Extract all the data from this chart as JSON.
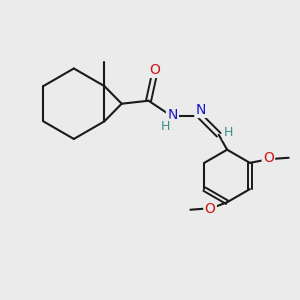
{
  "bg_color": "#ebebeb",
  "bond_color": "#1a1a1a",
  "bond_lw": 1.5,
  "atom_colors": {
    "N": "#1414cc",
    "O": "#cc1414",
    "H": "#3d8c8c"
  },
  "font_size": 10,
  "font_size_h": 9,
  "xlim": [
    0,
    10
  ],
  "ylim": [
    0,
    10
  ]
}
